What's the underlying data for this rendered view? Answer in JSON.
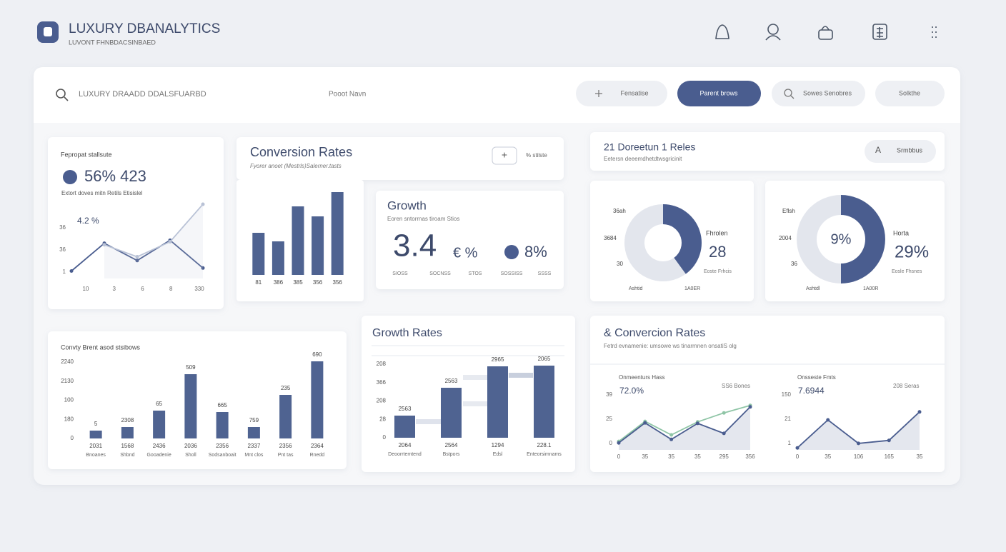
{
  "header": {
    "title": "LUXURY DBANALYTICS",
    "subtitle": "LUVONT FHNBDACSINBAED"
  },
  "toolbar": {
    "search": "LUXURY DRAADD DDALSFUARBD",
    "field": "Pooot Navn",
    "buttons": [
      "Fensatise",
      "Parent brows",
      "Sowes Senobres",
      "Solkthe"
    ]
  },
  "kpi_panel": {
    "label": "Fepropat stallsute",
    "headline": "56% 423",
    "caption": "Extort doves mitn Retils Etisislel",
    "annotation": "4.2 %",
    "chart": {
      "type": "line",
      "ylim": [
        0,
        100
      ],
      "y_labels": [
        "36",
        "36",
        "1"
      ],
      "x_labels": [
        "10",
        "3",
        "6",
        "8",
        "330"
      ],
      "series": [
        {
          "color": "#4a5d8f",
          "values": [
            10,
            47,
            24,
            51,
            14
          ]
        },
        {
          "color": "#b9c2d6",
          "area": true,
          "values": [
            null,
            45,
            29,
            49,
            99
          ]
        }
      ]
    }
  },
  "conversion_panel": {
    "title": "Conversion Rates",
    "subtitle": "Fyorer anoet (Mestrls)Salerner.tasts",
    "button": "+",
    "note": "% stilste",
    "chart": {
      "type": "bar",
      "color": "#4f6391",
      "ylim": [
        0,
        120
      ],
      "values": [
        59,
        47,
        96,
        82,
        116
      ],
      "x_labels": [
        "81",
        "386",
        "385",
        "356",
        "356"
      ]
    }
  },
  "growth_card": {
    "title": "Growth",
    "subtitle": "Eoren sntorrnas tiroam Stios",
    "big_value": "3.4",
    "unit": "€ %",
    "side_value": "8%",
    "labels": [
      "SIOSS",
      "SOCNSS",
      "STOS",
      "SOSSISS",
      "SSSS"
    ]
  },
  "retention_panel": {
    "title": "21 Doreetun 1 Reles",
    "subtitle": "Eetersn deeemdhetdtwsgricinit",
    "button_icon": "A",
    "button": "Srmbbus"
  },
  "donut_left": {
    "type": "donut",
    "values": [
      40,
      60
    ],
    "colors": [
      "#4a5d8f",
      "#e3e6ed"
    ],
    "left_labels": [
      "36ah",
      "3684",
      "30"
    ],
    "side_label": "Fhrolen",
    "side_value": "28",
    "side_caption": "Eoste Frhcis",
    "bottom_labels": [
      "Ashtid",
      "1A0ER"
    ]
  },
  "donut_right": {
    "type": "donut",
    "values": [
      50,
      50
    ],
    "colors": [
      "#4a5d8f",
      "#e3e6ed"
    ],
    "center": "9%",
    "left_labels": [
      "Eflsh",
      "2004",
      "36"
    ],
    "side_label": "Horta",
    "side_value": "29%",
    "side_caption": "Eosle Fhsnes",
    "bottom_labels": [
      "Ashtdl",
      "1A00R"
    ]
  },
  "brand_panel": {
    "title": "Convty Brent asod stsibows",
    "chart": {
      "type": "bar",
      "color": "#4f6391",
      "ylim": [
        0,
        120
      ],
      "y_labels": [
        "2240",
        "2130",
        "100",
        "180",
        "0"
      ],
      "values": [
        11,
        16,
        39,
        90,
        37,
        16,
        61,
        108
      ],
      "value_labels": [
        "5",
        "2308",
        "65",
        "509",
        "665",
        "759",
        "235",
        "690"
      ],
      "x_labels": [
        "2031",
        "1568",
        "2436",
        "2036",
        "2356",
        "2337",
        "2356",
        "2364"
      ],
      "x_sublabels": [
        "Bnoanes",
        "Shbnd",
        "Gooadenie",
        "Sholl",
        "Sodsanboait",
        "Mnt clos",
        "Pnt tas",
        "Rnedd"
      ]
    }
  },
  "growth_rates_panel": {
    "title": "Growth Rates",
    "chart": {
      "type": "bar",
      "color": "#4f6391",
      "ylim": [
        0,
        110
      ],
      "y_labels": [
        "208",
        "366",
        "208",
        "28",
        "0"
      ],
      "values": [
        31,
        70,
        100,
        101
      ],
      "value_labels": [
        "2563",
        "2563",
        "2965",
        "2065"
      ],
      "x_labels": [
        "2064",
        "2564",
        "1294",
        "228.1"
      ],
      "x_sublabels": [
        "Deoorrtemtend",
        "Bstpors",
        "Edsl",
        "Enteorsimnams"
      ]
    }
  },
  "conversion_lines_panel": {
    "title": "& Convercion Rates",
    "subtitle": "Fetrd evnamenie: umsowe ws tinarmnen onsatiS olg",
    "charts": [
      {
        "type": "line",
        "label": "Onmeenturs Hass",
        "headline": "72.0%",
        "note": "SS6 Bones",
        "ylim": [
          0,
          100
        ],
        "y_labels": [
          "39",
          "25",
          "0"
        ],
        "x_labels": [
          "0",
          "35",
          "35",
          "35",
          "295",
          "356"
        ],
        "series": [
          {
            "color": "#8fc5a6",
            "values": [
              17,
              57,
              30,
              56,
              74,
              89
            ]
          },
          {
            "color": "#4a5d8f",
            "area": true,
            "values": [
              14,
              54,
              21,
              53,
              33,
              86
            ]
          }
        ]
      },
      {
        "type": "line",
        "label": "Onsseste Fmts",
        "headline": "7.6944",
        "note": "208 Seras",
        "ylim": [
          0,
          100
        ],
        "y_labels": [
          "150",
          "21",
          "1"
        ],
        "x_labels": [
          "0",
          "35",
          "106",
          "165",
          "35"
        ],
        "series": [
          {
            "color": "#4a5d8f",
            "area": true,
            "values": [
              4,
              60,
              13,
              19,
              76
            ]
          }
        ]
      }
    ]
  }
}
